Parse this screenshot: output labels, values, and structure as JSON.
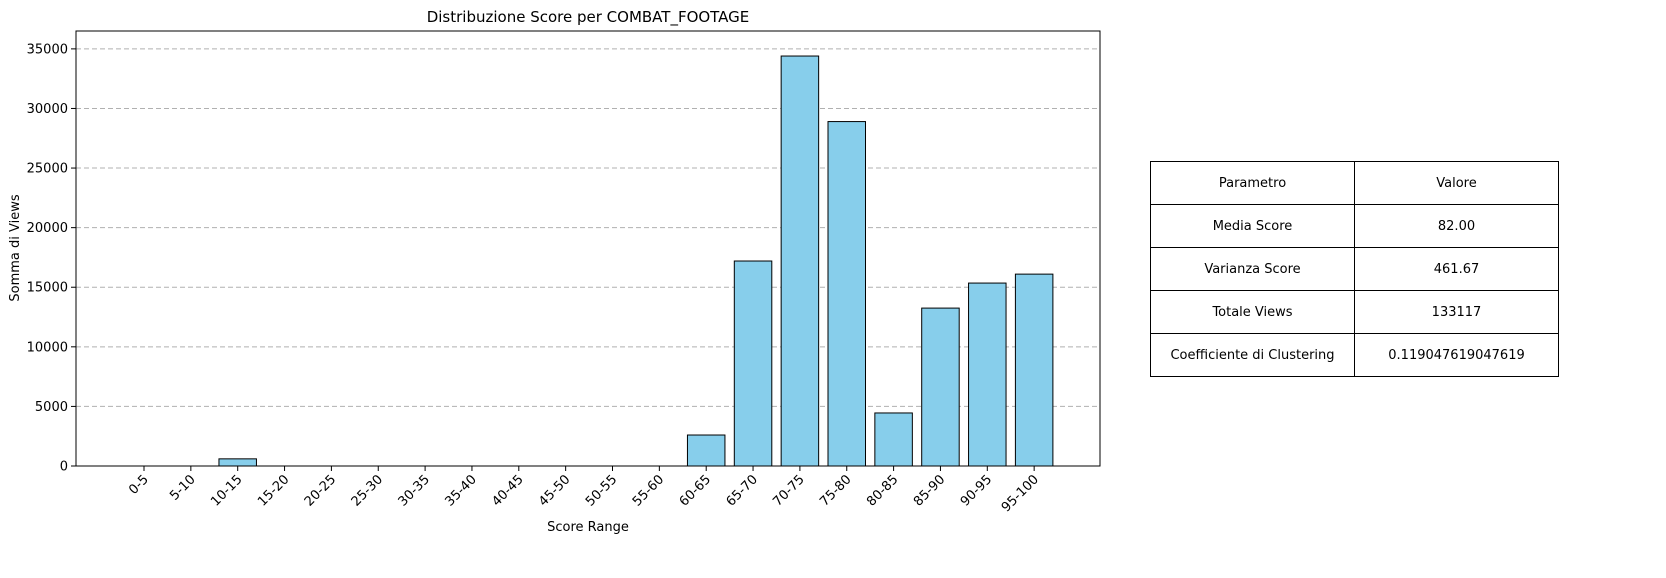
{
  "chart_data": {
    "type": "bar",
    "title": "Distribuzione Score per COMBAT_FOOTAGE",
    "xlabel": "Score Range",
    "ylabel": "Somma di Views",
    "categories": [
      "0-5",
      "5-10",
      "10-15",
      "15-20",
      "20-25",
      "25-30",
      "30-35",
      "35-40",
      "40-45",
      "45-50",
      "50-55",
      "55-60",
      "60-65",
      "65-70",
      "70-75",
      "75-80",
      "80-85",
      "85-90",
      "90-95",
      "95-100"
    ],
    "values": [
      0,
      0,
      600,
      0,
      0,
      0,
      0,
      0,
      0,
      0,
      0,
      0,
      2600,
      17200,
      34400,
      28900,
      4450,
      13250,
      15350,
      16100
    ],
    "ylim": [
      0,
      36500
    ],
    "yticks": [
      0,
      5000,
      10000,
      15000,
      20000,
      25000,
      30000,
      35000
    ],
    "grid": "y dashed",
    "colors": {
      "bar": "#87ceeb",
      "edge": "#000000",
      "grid": "#b0b0b0"
    }
  },
  "table": {
    "header": [
      "Parametro",
      "Valore"
    ],
    "rows": [
      [
        "Media Score",
        "82.00"
      ],
      [
        "Varianza Score",
        "461.67"
      ],
      [
        "Totale Views",
        "133117"
      ],
      [
        "Coefficiente di Clustering",
        "0.119047619047619"
      ]
    ]
  }
}
